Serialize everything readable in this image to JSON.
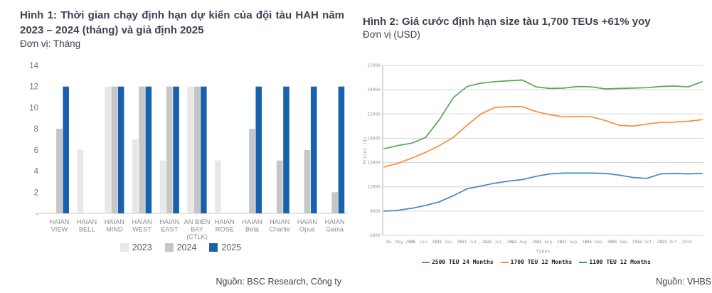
{
  "figures": {
    "left": {
      "title": "Hình 1: Thời gian chạy định hạn dự kiến của đội tàu HAH năm 2023 – 2024 (tháng) và giả định 2025",
      "unit": "Đơn vị: Tháng",
      "source": "Nguồn: BSC Research, Công ty"
    },
    "right": {
      "title": "Hình 2: Giá cước định hạn size tàu 1,700 TEUs +61% yoy",
      "unit": "Đơn vị (USD)",
      "source": "Nguồn: VHBS"
    }
  },
  "chart_data": [
    {
      "type": "bar",
      "title": "Thời gian chạy định hạn dự kiến của đội tàu HAH năm 2023 – 2024 (tháng) và giả định 2025",
      "ylabel": "Tháng",
      "ylim": [
        0,
        14
      ],
      "yticks": [
        "14",
        "12",
        "10",
        "8",
        "6",
        "4",
        "2",
        "-"
      ],
      "grid": false,
      "legend_position": "bottom",
      "categories": [
        "HAIAN VIEW",
        "HAIAN BELL",
        "HAIAN MIND",
        "HAIAN WEST",
        "HAIAN EAST",
        "AN BIEN BAY (CTLK)",
        "HAIAN ROSE",
        "HAIAN Beta",
        "HAIAN Charlie",
        "HAIAN Opus",
        "HAIAN Gama"
      ],
      "categories_lines": [
        [
          "HAIAN",
          "VIEW"
        ],
        [
          "HAIAN",
          "BELL"
        ],
        [
          "HAIAN",
          "MIND"
        ],
        [
          "HAIAN",
          "WEST"
        ],
        [
          "HAIAN",
          "EAST"
        ],
        [
          "AN BIEN",
          "BAY",
          "(CTLK)"
        ],
        [
          "HAIAN",
          "ROSE"
        ],
        [
          "HAIAN",
          "Beta"
        ],
        [
          "HAIAN",
          "Charlie"
        ],
        [
          "HAIAN",
          "Opus"
        ],
        [
          "HAIAN",
          "Gama"
        ]
      ],
      "series": [
        {
          "name": "2023",
          "color": "#e8e8e8",
          "values": [
            0,
            6,
            12,
            7,
            5,
            12,
            5,
            0,
            0,
            0,
            0
          ]
        },
        {
          "name": "2024",
          "color": "#c6c6c6",
          "values": [
            8,
            0,
            12,
            12,
            12,
            12,
            0,
            8,
            5,
            6,
            2
          ]
        },
        {
          "name": "2025",
          "color": "#1a61ad",
          "values": [
            12,
            0,
            12,
            12,
            12,
            12,
            0,
            12,
            12,
            12,
            12
          ]
        }
      ]
    },
    {
      "type": "line",
      "title": "Giá cước định hạn size tàu 1,700 TEUs +61% yoy",
      "xlabel": "Types",
      "ylabel": "Prices ($)",
      "ylim": [
        6000,
        27000
      ],
      "yticks": [
        27000,
        24000,
        21000,
        18000,
        15000,
        12000,
        9000,
        6000
      ],
      "grid": true,
      "legend_position": "bottom",
      "x_tick_labels": [
        "26. May 2024",
        "09. Jun. 2024",
        "23. Jun. 2024",
        "07. Jul. 2024",
        "21. Jul. 2024",
        "04. Aug. 2024",
        "18. Aug. 2024",
        "01. Sep. 2024",
        "15. Sep. 2024",
        "29. Sep. 2024",
        "13. Oct. 2024",
        "27. Oct. 2024"
      ],
      "series": [
        {
          "name": "2500 TEU 24 Months",
          "color": "#54a854",
          "values": [
            16700,
            17100,
            17400,
            18100,
            20300,
            23000,
            24400,
            24800,
            25000,
            25100,
            25200,
            24350,
            24150,
            24200,
            24400,
            24350,
            24100,
            24150,
            24200,
            24250,
            24400,
            24450,
            24350,
            25000
          ]
        },
        {
          "name": "1700 TEU 12 Months",
          "color": "#f78f3d",
          "values": [
            14450,
            14900,
            15550,
            16250,
            17100,
            18100,
            19600,
            21000,
            21800,
            21900,
            21900,
            21300,
            20900,
            20650,
            20700,
            20650,
            20200,
            19600,
            19500,
            19750,
            19950,
            20000,
            20100,
            20300
          ]
        },
        {
          "name": "1100 TEU 12 Months",
          "color": "#4286c5",
          "values": [
            9000,
            9100,
            9350,
            9700,
            10150,
            10900,
            11750,
            12100,
            12450,
            12700,
            12900,
            13300,
            13600,
            13700,
            13700,
            13700,
            13650,
            13450,
            13150,
            13050,
            13600,
            13650,
            13600,
            13650
          ]
        }
      ]
    }
  ]
}
